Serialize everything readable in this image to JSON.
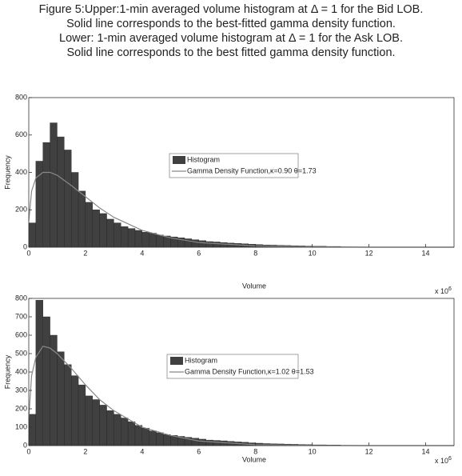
{
  "caption": [
    "Figure 5:Upper:1-min averaged volume histogram at Δ = 1 for the Bid LOB.",
    "Solid line corresponds to the best-fitted gamma density function.",
    "Lower: 1-min averaged volume histogram at Δ = 1 for the Ask LOB.",
    "Solid line corresponds to the best fitted gamma density function."
  ],
  "chart_data": [
    {
      "type": "histogram",
      "x_label": "Volume",
      "y_label": "Frequency",
      "x_scale_base": "x 10",
      "x_scale_power": "6",
      "bins": [
        0,
        0.25,
        0.5,
        0.75,
        1,
        1.25,
        1.5,
        1.75,
        2,
        2.25,
        2.5,
        2.75,
        3,
        3.25,
        3.5,
        3.75,
        4,
        4.25,
        4.5,
        4.75,
        5,
        5.25,
        5.5,
        5.75,
        6,
        6.25,
        6.5,
        6.75,
        7,
        7.25,
        7.5,
        7.75,
        8,
        8.25,
        8.5,
        8.75,
        9,
        9.25,
        9.5,
        9.75,
        10,
        10.25,
        10.5,
        10.75,
        11
      ],
      "series": [
        {
          "name": "Histogram",
          "type": "histogram",
          "color": "#404040",
          "values": [
            130,
            460,
            560,
            665,
            590,
            520,
            400,
            300,
            240,
            200,
            180,
            150,
            130,
            110,
            100,
            90,
            80,
            75,
            65,
            60,
            55,
            50,
            45,
            40,
            35,
            30,
            28,
            25,
            22,
            20,
            18,
            16,
            14,
            12,
            11,
            10,
            9,
            8,
            7,
            6,
            5,
            5,
            4,
            4
          ]
        },
        {
          "name": "Gamma Density Function,κ=0.90 θ=1.73",
          "type": "line",
          "color": "#888888",
          "x": [
            0,
            0.1,
            0.25,
            0.5,
            0.75,
            1,
            1.5,
            2,
            2.5,
            3,
            4,
            5,
            6,
            8,
            10,
            12,
            15
          ],
          "values": [
            140,
            300,
            370,
            400,
            400,
            385,
            330,
            270,
            210,
            160,
            90,
            50,
            25,
            7,
            2,
            0,
            0
          ]
        }
      ],
      "xlim": [
        0,
        15
      ],
      "xticks": [
        0,
        2,
        4,
        6,
        8,
        10,
        12,
        14
      ],
      "ylim": [
        0,
        800
      ],
      "yticks": [
        0,
        200,
        400,
        600,
        800
      ]
    },
    {
      "type": "histogram",
      "x_label": "Volume",
      "y_label": "Frequency",
      "x_scale_base": "x 10",
      "x_scale_power": "6",
      "bins": [
        0,
        0.25,
        0.5,
        0.75,
        1,
        1.25,
        1.5,
        1.75,
        2,
        2.25,
        2.5,
        2.75,
        3,
        3.25,
        3.5,
        3.75,
        4,
        4.25,
        4.5,
        4.75,
        5,
        5.25,
        5.5,
        5.75,
        6,
        6.25,
        6.5,
        6.75,
        7,
        7.25,
        7.5,
        7.75,
        8,
        8.25,
        8.5,
        8.75,
        9,
        9.25,
        9.5,
        9.75,
        10,
        10.25,
        10.5,
        10.75,
        11
      ],
      "series": [
        {
          "name": "Histogram",
          "type": "histogram",
          "color": "#404040",
          "values": [
            170,
            790,
            700,
            600,
            510,
            440,
            380,
            330,
            270,
            250,
            220,
            190,
            170,
            150,
            130,
            110,
            95,
            80,
            70,
            60,
            55,
            50,
            45,
            40,
            35,
            30,
            28,
            26,
            23,
            20,
            18,
            15,
            13,
            11,
            10,
            9,
            8,
            7,
            6,
            5,
            4,
            4,
            3,
            3
          ]
        },
        {
          "name": "Gamma Density Function,κ=1.02 θ=1.53",
          "type": "line",
          "color": "#888888",
          "x": [
            0,
            0.1,
            0.25,
            0.5,
            0.75,
            1,
            1.5,
            2,
            2.5,
            3,
            4,
            5,
            6,
            8,
            10,
            12,
            15
          ],
          "values": [
            150,
            380,
            480,
            540,
            530,
            500,
            420,
            330,
            250,
            190,
            100,
            55,
            25,
            5,
            1,
            0,
            0
          ]
        }
      ],
      "xlim": [
        0,
        15
      ],
      "xticks": [
        0,
        2,
        4,
        6,
        8,
        10,
        12,
        14
      ],
      "ylim": [
        0,
        800
      ],
      "yticks": [
        0,
        100,
        200,
        300,
        400,
        500,
        600,
        700,
        800
      ]
    }
  ]
}
